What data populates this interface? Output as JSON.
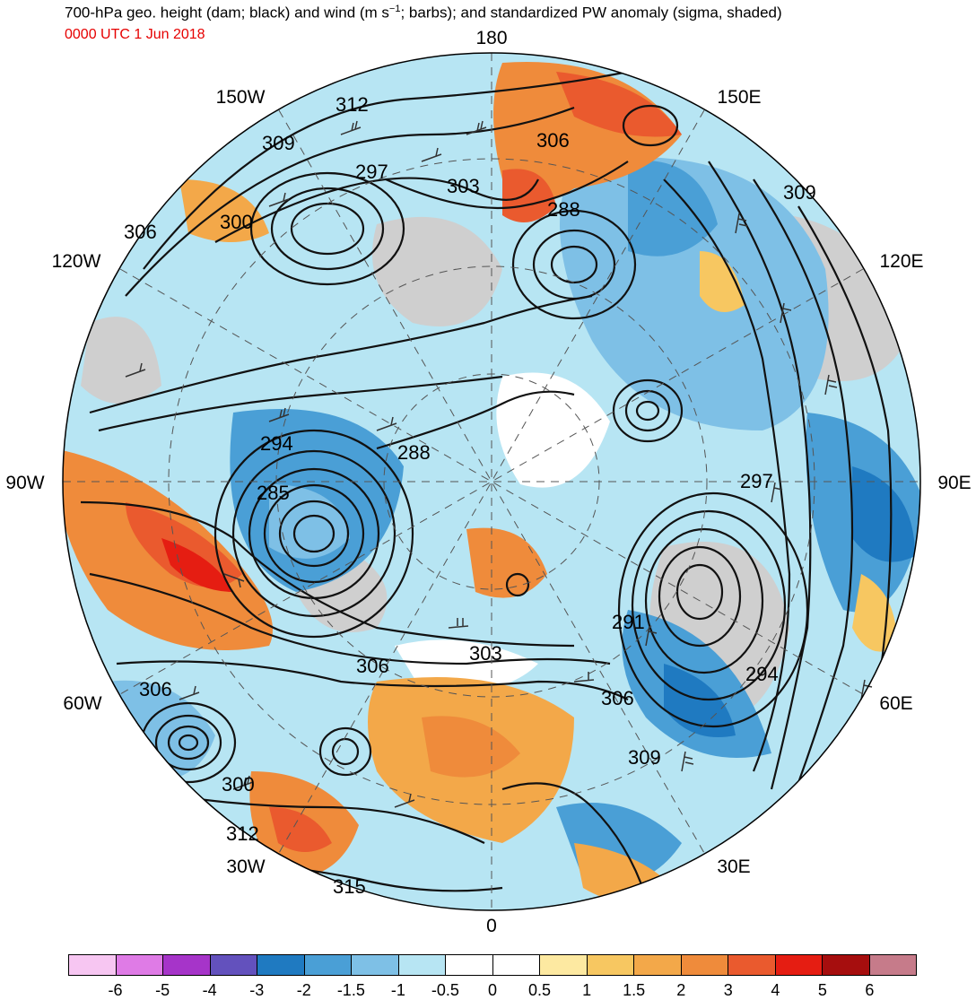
{
  "title_prefix": "700-hPa geo. height (dam; black) and wind (m s",
  "title_sup": "−1",
  "title_suffix": "; barbs); and standardized PW anomaly (sigma, shaded)",
  "valid_time": "0000 UTC 1 Jun 2018",
  "longitude_labels": [
    {
      "text": "180"
    },
    {
      "text": "150W"
    },
    {
      "text": "150E"
    },
    {
      "text": "120W"
    },
    {
      "text": "120E"
    },
    {
      "text": "90W"
    },
    {
      "text": "90E"
    },
    {
      "text": "60W"
    },
    {
      "text": "60E"
    },
    {
      "text": "30W"
    },
    {
      "text": "30E"
    },
    {
      "text": "0"
    }
  ],
  "contour_labels": [
    {
      "text": "312"
    },
    {
      "text": "309"
    },
    {
      "text": "297"
    },
    {
      "text": "306"
    },
    {
      "text": "303"
    },
    {
      "text": "288"
    },
    {
      "text": "300"
    },
    {
      "text": "306"
    },
    {
      "text": "309"
    },
    {
      "text": "294"
    },
    {
      "text": "288"
    },
    {
      "text": "285"
    },
    {
      "text": "297"
    },
    {
      "text": "291"
    },
    {
      "text": "303"
    },
    {
      "text": "306"
    },
    {
      "text": "294"
    },
    {
      "text": "306"
    },
    {
      "text": "306"
    },
    {
      "text": "309"
    },
    {
      "text": "300"
    },
    {
      "text": "312"
    },
    {
      "text": "315"
    }
  ],
  "colorbar": {
    "colors": [
      "#f7c6f2",
      "#df7be6",
      "#a634c9",
      "#6351bd",
      "#1f7ac1",
      "#4a9fd6",
      "#7ec0e6",
      "#b7e5f3",
      "#ffffff",
      "#ffffff",
      "#fde9a1",
      "#f7c761",
      "#f3a849",
      "#ef8b3b",
      "#ea5a2e",
      "#e51d12",
      "#a60e0e",
      "#c67b8a"
    ],
    "ticks": [
      "-6",
      "-5",
      "-4",
      "-3",
      "-2",
      "-1.5",
      "-1",
      "-0.5",
      "0",
      "0.5",
      "1",
      "1.5",
      "2",
      "3",
      "4",
      "5",
      "6"
    ]
  },
  "palette": {
    "land": "#cfcfcf",
    "warm": "#ef8b3b",
    "cool": "#7ec0e6",
    "deep_warm": "#e51d12",
    "deep_cool": "#1f7ac1"
  }
}
